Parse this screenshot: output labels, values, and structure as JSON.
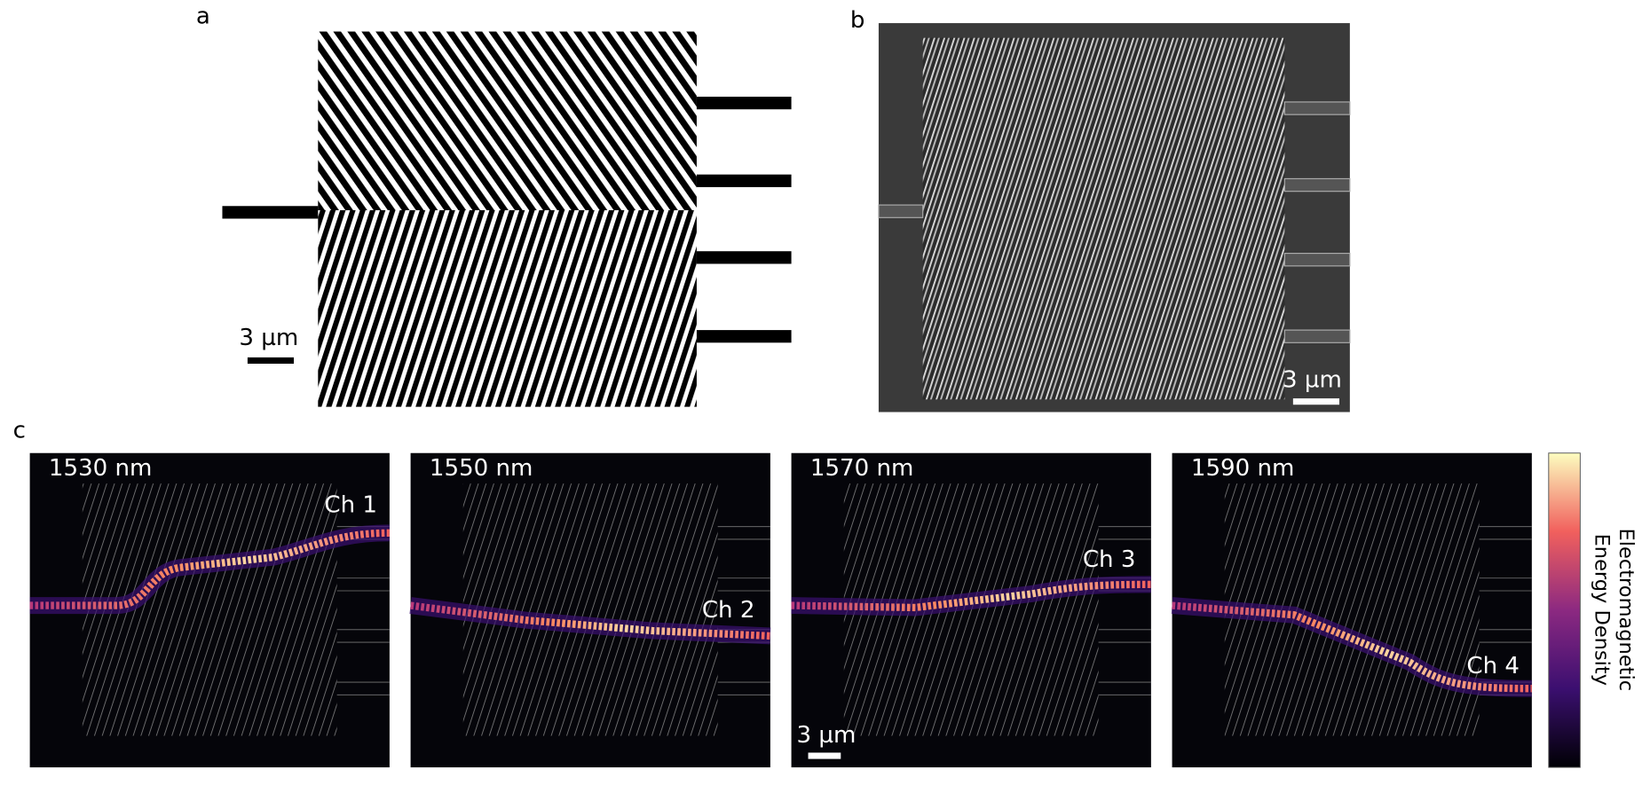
{
  "panels": {
    "a": {
      "label": "a",
      "scale_bar": "3 µm"
    },
    "b": {
      "label": "b",
      "scale_bar": "3 µm"
    },
    "c": {
      "label": "c",
      "scale_bar": "3 µm",
      "maps": [
        {
          "wavelength": "1530 nm",
          "channel": "Ch 1"
        },
        {
          "wavelength": "1550 nm",
          "channel": "Ch 2"
        },
        {
          "wavelength": "1570 nm",
          "channel": "Ch 3"
        },
        {
          "wavelength": "1590 nm",
          "channel": "Ch 4"
        }
      ],
      "colorbar_label": [
        "Electromagnetic",
        "Energy Density"
      ]
    }
  }
}
